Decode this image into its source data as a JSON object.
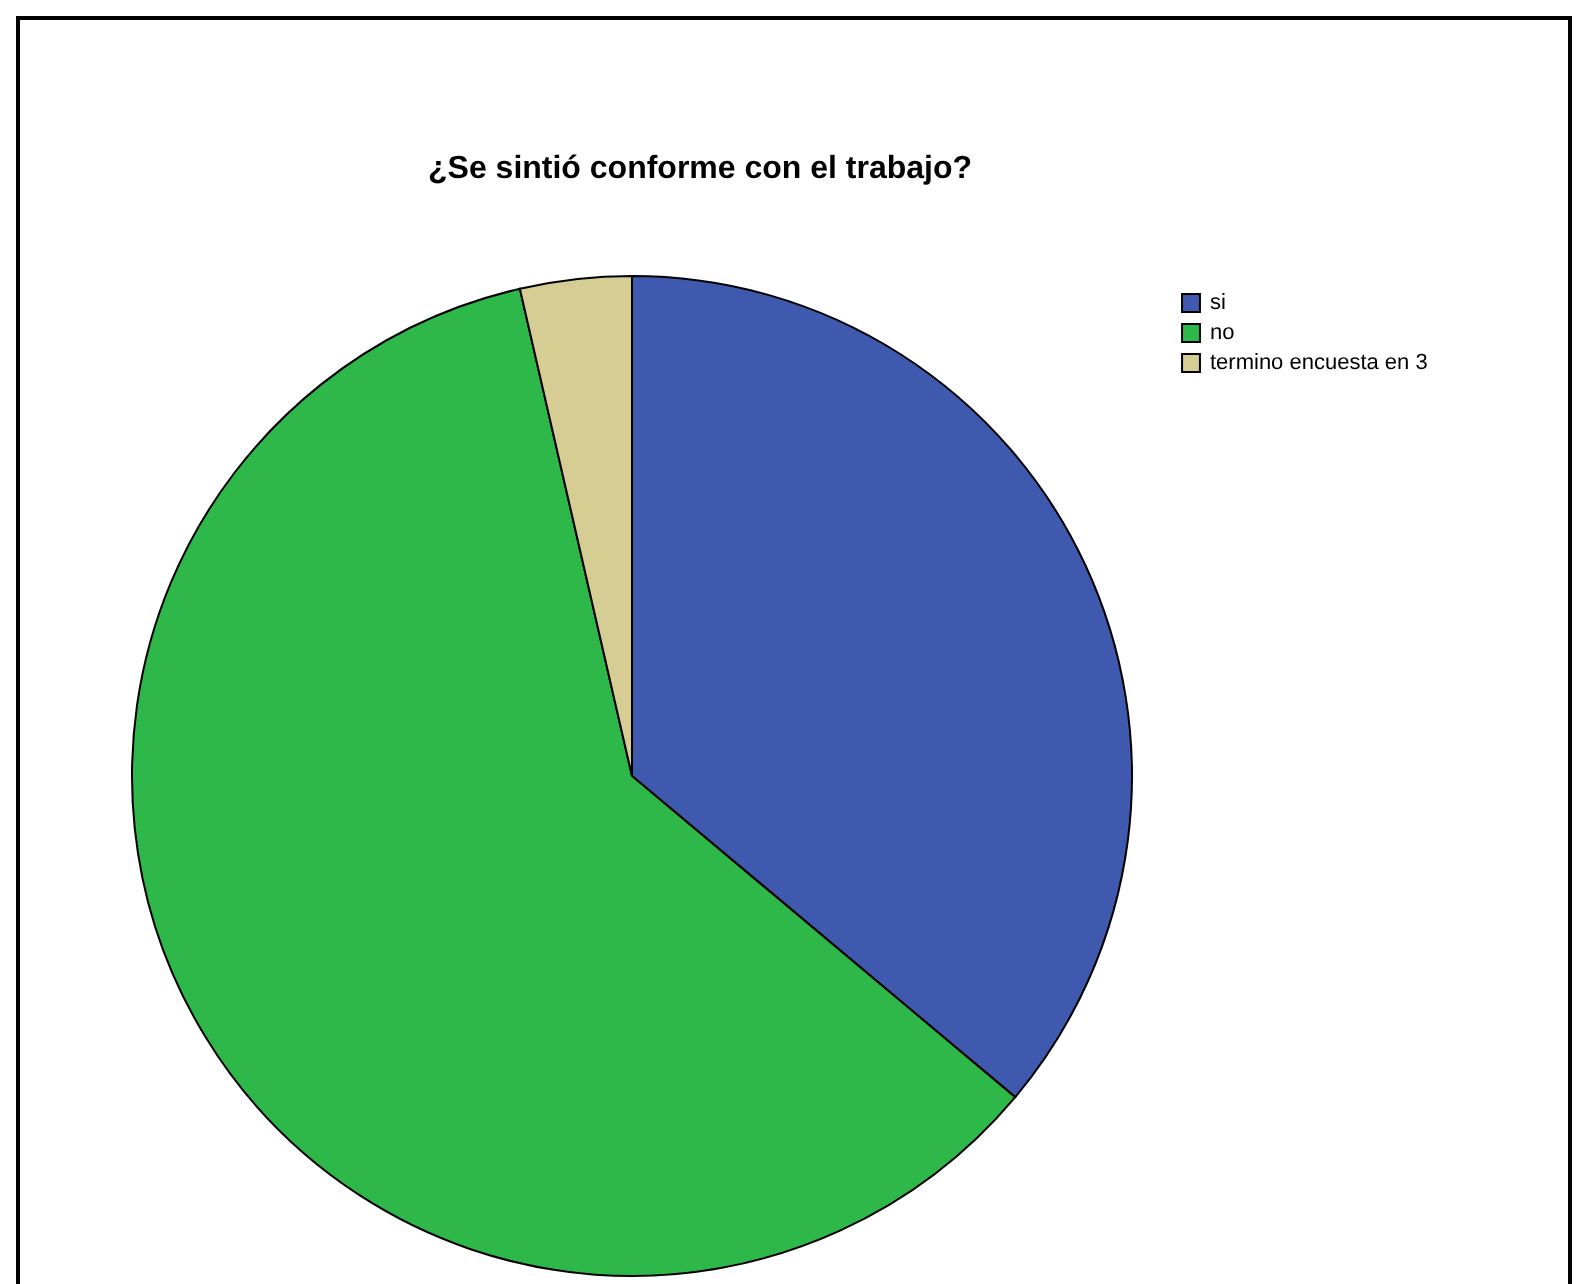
{
  "chart_data": {
    "type": "pie",
    "title": "¿Se sintió conforme con el trabajo?",
    "categories": [
      "si",
      "no",
      "termino encuesta en 3"
    ],
    "values": [
      36.1,
      60.3,
      3.6
    ],
    "colors": [
      "#3f59ae",
      "#2fb84a",
      "#d6cd95"
    ],
    "legend": "top right"
  }
}
